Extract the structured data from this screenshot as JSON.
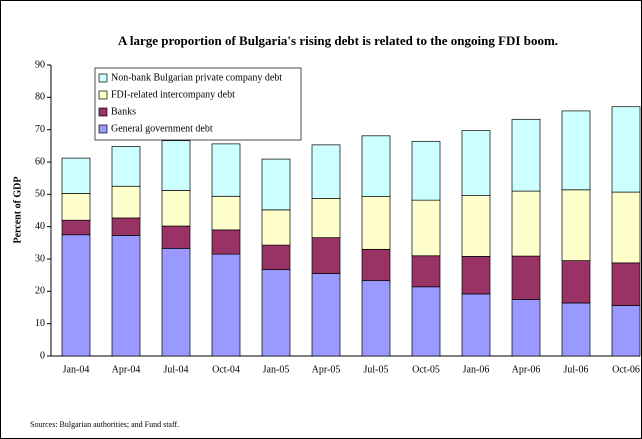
{
  "chart_data": {
    "type": "stacked-bar",
    "title": "A large proportion of Bulgaria's rising debt is related to the ongoing FDI boom.",
    "y_label": "Percent of GDP",
    "source": "Sources: Bulgarian authorities; and Fund staff.",
    "categories": [
      "Jan-04",
      "Apr-04",
      "Jul-04",
      "Oct-04",
      "Jan-05",
      "Apr-05",
      "Jul-05",
      "Oct-05",
      "Jan-06",
      "Apr-06",
      "Jul-06",
      "Oct-06"
    ],
    "series": [
      {
        "name": "General government debt",
        "color": "#9999ff",
        "values": [
          37.5,
          37.3,
          33.3,
          31.5,
          26.7,
          25.5,
          23.3,
          21.4,
          19.2,
          17.5,
          16.4,
          15.6
        ]
      },
      {
        "name": "Banks",
        "color": "#993366",
        "values": [
          4.5,
          5.4,
          6.9,
          7.5,
          7.6,
          11.1,
          9.7,
          9.6,
          11.6,
          13.4,
          13.1,
          13.2
        ]
      },
      {
        "name": "FDI-related intercompany debt",
        "color": "#ffffcc",
        "values": [
          8.3,
          9.8,
          11,
          10.4,
          10.9,
          12.1,
          16.3,
          17.2,
          18.8,
          20.1,
          21.9,
          21.9
        ]
      },
      {
        "name": "Non-bank Bulgarian private company debt",
        "color": "#ccffff",
        "values": [
          10.9,
          12.3,
          15.4,
          16.2,
          15.7,
          16.6,
          18.8,
          18.2,
          20.1,
          22.2,
          24.4,
          26.4
        ]
      }
    ],
    "ylim": [
      0,
      90
    ],
    "yticks": [
      0,
      10,
      20,
      30,
      40,
      50,
      60,
      70,
      80,
      90
    ],
    "legend": "top-left"
  }
}
